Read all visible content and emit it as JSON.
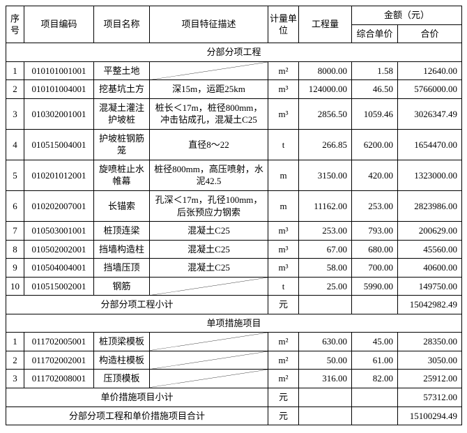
{
  "header": {
    "col_seq": "序号",
    "col_code": "项目编码",
    "col_name": "项目名称",
    "col_desc": "项目特征描述",
    "col_unit": "计量单位",
    "col_qty": "工程量",
    "col_amount": "金额（元）",
    "col_unitprice": "综合单价",
    "col_total": "合价"
  },
  "section1": {
    "title": "分部分项工程",
    "rows": [
      {
        "n": "1",
        "code": "010101001001",
        "name": "平整土地",
        "desc": "",
        "diag": true,
        "unit": "m²",
        "qty": "8000.00",
        "up": "1.58",
        "tot": "12640.00"
      },
      {
        "n": "2",
        "code": "010101004001",
        "name": "挖基坑土方",
        "desc": "深15m，运距25km",
        "unit": "m³",
        "qty": "124000.00",
        "up": "46.50",
        "tot": "5766000.00"
      },
      {
        "n": "3",
        "code": "010302001001",
        "name": "混凝土灌注护坡桩",
        "desc": "桩长＜17m，桩径800mm，冲击钻成孔，混凝土C25",
        "unit": "m³",
        "qty": "2856.50",
        "up": "1059.46",
        "tot": "3026347.49"
      },
      {
        "n": "4",
        "code": "010515004001",
        "name": "护坡桩钢筋笼",
        "desc": "直径8～22",
        "unit": "t",
        "qty": "266.85",
        "up": "6200.00",
        "tot": "1654470.00"
      },
      {
        "n": "5",
        "code": "010201012001",
        "name": "旋喷桩止水帷幕",
        "desc": "桩径800mm，高压喷射，水泥42.5",
        "unit": "m",
        "qty": "3150.00",
        "up": "420.00",
        "tot": "1323000.00"
      },
      {
        "n": "6",
        "code": "010202007001",
        "name": "长锚索",
        "desc": "孔深＜17m，孔径100mm，后张预应力钢索",
        "unit": "m",
        "qty": "11162.00",
        "up": "253.00",
        "tot": "2823986.00"
      },
      {
        "n": "7",
        "code": "010503001001",
        "name": "桩顶连梁",
        "desc": "混凝土C25",
        "unit": "m³",
        "qty": "253.00",
        "up": "793.00",
        "tot": "200629.00"
      },
      {
        "n": "8",
        "code": "010502002001",
        "name": "挡墙构造柱",
        "desc": "混凝土C25",
        "unit": "m³",
        "qty": "67.00",
        "up": "680.00",
        "tot": "45560.00"
      },
      {
        "n": "9",
        "code": "010504004001",
        "name": "挡墙压顶",
        "desc": "混凝土C25",
        "unit": "m³",
        "qty": "58.00",
        "up": "700.00",
        "tot": "40600.00"
      },
      {
        "n": "10",
        "code": "010515002001",
        "name": "钢筋",
        "desc": "",
        "diag": true,
        "unit": "t",
        "qty": "25.00",
        "up": "5990.00",
        "tot": "149750.00"
      }
    ],
    "subtotal_label": "分部分项工程小计",
    "subtotal_unit": "元",
    "subtotal_value": "15042982.49"
  },
  "section2": {
    "title": "单项措施项目",
    "rows": [
      {
        "n": "1",
        "code": "011702005001",
        "name": "桩顶梁模板",
        "desc": "",
        "diag": true,
        "unit": "m²",
        "qty": "630.00",
        "up": "45.00",
        "tot": "28350.00"
      },
      {
        "n": "2",
        "code": "011702002001",
        "name": "构造柱模板",
        "desc": "",
        "diag": true,
        "unit": "m²",
        "qty": "50.00",
        "up": "61.00",
        "tot": "3050.00"
      },
      {
        "n": "3",
        "code": "011702008001",
        "name": "压顶模板",
        "desc": "",
        "diag": true,
        "unit": "m²",
        "qty": "316.00",
        "up": "82.00",
        "tot": "25912.00"
      }
    ],
    "subtotal_label": "单价措施项目小计",
    "subtotal_unit": "元",
    "subtotal_value": "57312.00"
  },
  "grand": {
    "label": "分部分项工程和单价措施项目合计",
    "unit": "元",
    "value": "15100294.49"
  }
}
